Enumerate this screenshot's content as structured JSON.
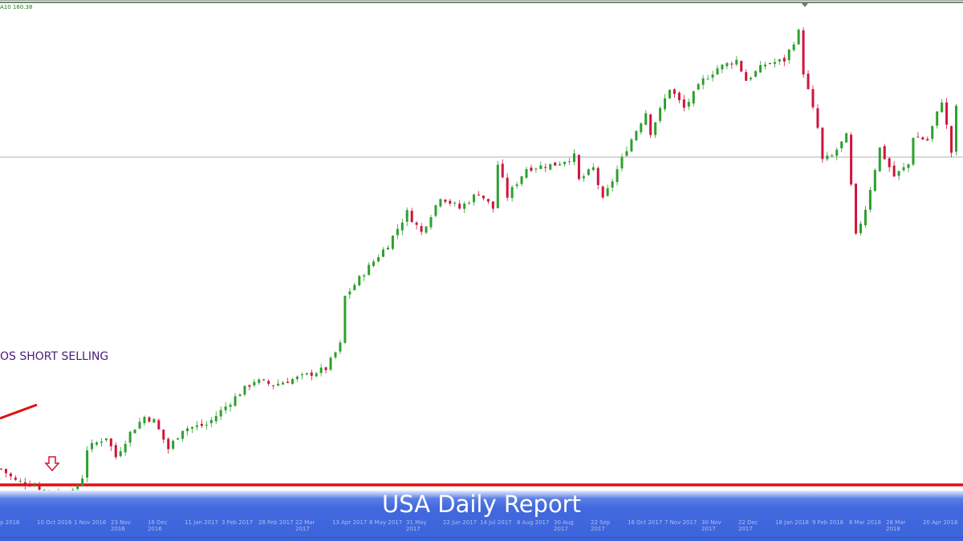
{
  "indicator_text": "A10 160.38",
  "annotation": "OS SHORT SELLING",
  "banner_title": "USA Daily Report",
  "colors": {
    "up": "#2ea02e",
    "down": "#d0143c",
    "support_line": "#e01010",
    "banner": "#3d65db",
    "annotation": "#4b1a7a"
  },
  "icons": {
    "marker": "down-arrow-icon"
  },
  "chart_data": {
    "type": "candlestick",
    "title": "",
    "xlabel": "",
    "ylabel": "",
    "ylim": [
      76,
      200
    ],
    "grid": false,
    "x_tick_labels": [
      "p 2016",
      "10 Oct 2016",
      "1 Nov 2016",
      "23 Nov 2016",
      "16 Dec 2016",
      "11 Jan 2017",
      "3 Feb 2017",
      "28 Feb 2017",
      "22 Mar 2017",
      "13 Apr 2017",
      "8 May 2017",
      "31 May 2017",
      "22 Jun 2017",
      "14 Jul 2017",
      "8 Aug 2017",
      "30 Aug 2017",
      "22 Sep 2017",
      "16 Oct 2017",
      "7 Nov 2017",
      "30 Nov 2017",
      "22 Dec 2017",
      "18 Jan 2018",
      "9 Feb 2018",
      "6 Mar 2018",
      "28 Mar 2018",
      "20 Apr 2018"
    ],
    "horizontal_levels": [
      {
        "value": 160.8,
        "color": "#999999"
      },
      {
        "value": 79,
        "color": "#e01010"
      }
    ],
    "close_path": [
      [
        0,
        83
      ],
      [
        3,
        80
      ],
      [
        7,
        79
      ],
      [
        10,
        77
      ],
      [
        15,
        77
      ],
      [
        17,
        81
      ],
      [
        18,
        88
      ],
      [
        22,
        91
      ],
      [
        24,
        86
      ],
      [
        27,
        92
      ],
      [
        30,
        96
      ],
      [
        32,
        95
      ],
      [
        35,
        88
      ],
      [
        38,
        93
      ],
      [
        43,
        94
      ],
      [
        50,
        102
      ],
      [
        53,
        105
      ],
      [
        57,
        104
      ],
      [
        63,
        106
      ],
      [
        68,
        108
      ],
      [
        71,
        114
      ],
      [
        72,
        126
      ],
      [
        76,
        132
      ],
      [
        81,
        139
      ],
      [
        85,
        147
      ],
      [
        88,
        142
      ],
      [
        92,
        151
      ],
      [
        96,
        148
      ],
      [
        100,
        152
      ],
      [
        103,
        148
      ],
      [
        104,
        159
      ],
      [
        106,
        151
      ],
      [
        110,
        158
      ],
      [
        116,
        159
      ],
      [
        120,
        161
      ],
      [
        121,
        155
      ],
      [
        124,
        158
      ],
      [
        126,
        150
      ],
      [
        128,
        155
      ],
      [
        131,
        163
      ],
      [
        135,
        172
      ],
      [
        136,
        167
      ],
      [
        140,
        178
      ],
      [
        143,
        173
      ],
      [
        147,
        180
      ],
      [
        150,
        183
      ],
      [
        154,
        185
      ],
      [
        156,
        180
      ],
      [
        160,
        184
      ],
      [
        164,
        185
      ],
      [
        167,
        192
      ],
      [
        168,
        182
      ],
      [
        171,
        168
      ],
      [
        172,
        160
      ],
      [
        174,
        161
      ],
      [
        177,
        166
      ],
      [
        179,
        141
      ],
      [
        181,
        148
      ],
      [
        184,
        163
      ],
      [
        187,
        156
      ],
      [
        190,
        159
      ],
      [
        191,
        166
      ],
      [
        194,
        165
      ],
      [
        197,
        175
      ],
      [
        199,
        162
      ],
      [
        200,
        173
      ]
    ]
  }
}
